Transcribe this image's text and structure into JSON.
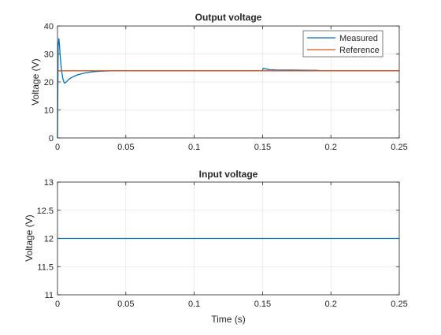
{
  "chart_data": [
    {
      "type": "line",
      "title": "Output voltage",
      "xlabel": "",
      "ylabel": "Voltage (V)",
      "xlim": [
        0,
        0.25
      ],
      "ylim": [
        0,
        40
      ],
      "xticks": [
        0,
        0.05,
        0.1,
        0.15,
        0.2,
        0.25
      ],
      "xtick_labels": [
        "0",
        "0.05",
        "0.1",
        "0.15",
        "0.2",
        "0.25"
      ],
      "yticks": [
        0,
        10,
        20,
        30,
        40
      ],
      "ytick_labels": [
        "0",
        "10",
        "20",
        "30",
        "40"
      ],
      "grid": true,
      "legend_position": "top-right",
      "series": [
        {
          "name": "Measured",
          "color": "#0072BD",
          "x": [
            0,
            0.0005,
            0.001,
            0.0015,
            0.002,
            0.003,
            0.004,
            0.005,
            0.006,
            0.008,
            0.01,
            0.012,
            0.015,
            0.02,
            0.025,
            0.03,
            0.035,
            0.04,
            0.05,
            0.1,
            0.15,
            0.1502,
            0.1505,
            0.152,
            0.155,
            0.16,
            0.17,
            0.18,
            0.19,
            0.192,
            0.2,
            0.25
          ],
          "y": [
            0,
            33,
            35.5,
            33,
            29,
            24,
            21,
            19.6,
            19.8,
            20.8,
            21.5,
            22,
            22.6,
            23.2,
            23.6,
            23.8,
            23.9,
            24,
            24,
            24,
            24,
            24.6,
            24.9,
            24.7,
            24.4,
            24.3,
            24.25,
            24.2,
            24.15,
            24.05,
            24,
            24
          ]
        },
        {
          "name": "Reference",
          "color": "#D95319",
          "x": [
            0,
            0.25
          ],
          "y": [
            24,
            24
          ]
        }
      ]
    },
    {
      "type": "line",
      "title": "Input voltage",
      "xlabel": "Time (s)",
      "ylabel": "Voltage (V)",
      "xlim": [
        0,
        0.25
      ],
      "ylim": [
        11,
        13
      ],
      "xticks": [
        0,
        0.05,
        0.1,
        0.15,
        0.2,
        0.25
      ],
      "xtick_labels": [
        "0",
        "0.05",
        "0.1",
        "0.15",
        "0.2",
        "0.25"
      ],
      "yticks": [
        11,
        11.5,
        12,
        12.5,
        13
      ],
      "ytick_labels": [
        "11",
        "11.5",
        "12",
        "12.5",
        "13"
      ],
      "grid": true,
      "series": [
        {
          "color": "#0072BD",
          "x": [
            0,
            0.25
          ],
          "y": [
            12,
            12
          ]
        }
      ]
    }
  ]
}
